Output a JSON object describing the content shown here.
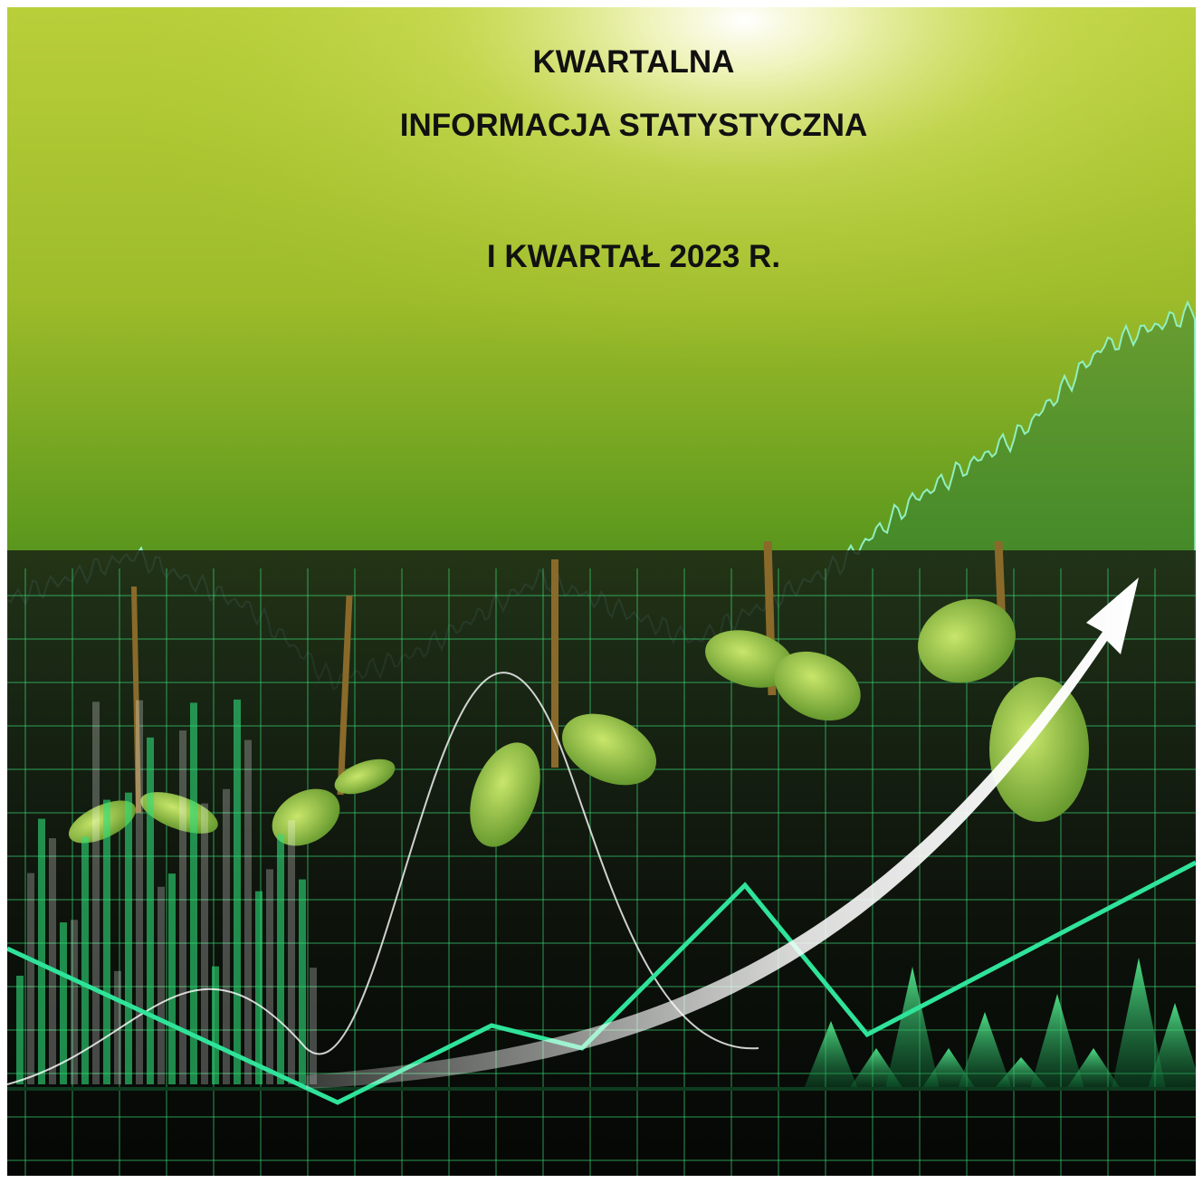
{
  "header": {
    "title_line1": "KWARTALNA",
    "title_line2": "INFORMACJA STATYSTYCZNA",
    "period": "I KWARTAŁ 2023 R."
  }
}
